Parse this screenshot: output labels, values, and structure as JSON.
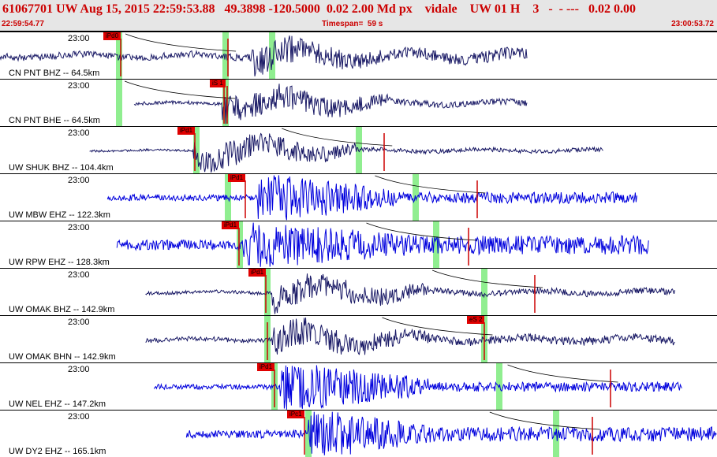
{
  "header": {
    "title": "61067701 UW Aug 15, 2015 22:59:53.88   49.3898 -120.5000  0.02 2.00 Md px    vidale    UW 01 H    3   -  - ---   0.02 0.00",
    "start_time": "22:59:54.77",
    "timespan": "Timespan=  59 s",
    "end_time": "23:00:53.72"
  },
  "colors": {
    "header_bg": "#e6e6e6",
    "header_text": "#cc0000",
    "trace_dark": "#1a1a66",
    "trace_blue": "#0000dd",
    "pick_window": "#90ee90",
    "pick_tag": "#e00000",
    "pick_line": "#cc0000"
  },
  "traces": [
    {
      "time_label": "23:00",
      "station": "CN PNT BHZ -- 64.5km",
      "pick_label": "iPd0",
      "color": "dark",
      "trace_start": 0.0,
      "trace_end": 0.735,
      "envelope": 0.18,
      "event_onset": 0.35,
      "event_peak": 0.55,
      "p_pick": 0.168,
      "s_pick": 0.318,
      "green_windows": [
        0.166,
        0.315,
        0.38
      ]
    },
    {
      "time_label": "23:00",
      "station": "CN PNT BHE -- 64.5km",
      "pick_label": "iS 1",
      "color": "dark",
      "trace_start": 0.187,
      "trace_end": 0.735,
      "envelope": 0.09,
      "event_onset": 0.31,
      "event_peak": 0.55,
      "p_pick": 0.312,
      "s_pick": 0.317,
      "green_windows": [
        0.166,
        0.315
      ]
    },
    {
      "time_label": "23:00",
      "station": "UW SHUK BHZ -- 104.4km",
      "pick_label": "iPd1",
      "color": "dark",
      "trace_start": 0.125,
      "trace_end": 0.842,
      "envelope": 0.06,
      "event_onset": 0.27,
      "event_peak": 0.5,
      "p_pick": 0.272,
      "s_pick": 0.536,
      "green_windows": [
        0.274,
        0.5
      ]
    },
    {
      "time_label": "23:00",
      "station": "UW MBW EHZ -- 122.3km",
      "pick_label": "iPd1",
      "color": "blue",
      "trace_start": 0.15,
      "trace_end": 0.889,
      "envelope": 0.11,
      "event_onset": 0.36,
      "event_peak": 0.55,
      "p_pick": 0.342,
      "s_pick": 0.666,
      "green_windows": [
        0.318,
        0.58
      ]
    },
    {
      "time_label": "23:00",
      "station": "UW RPW EHZ -- 128.3km",
      "pick_label": "iPd1",
      "color": "blue",
      "trace_start": 0.163,
      "trace_end": 0.905,
      "envelope": 0.18,
      "event_onset": 0.34,
      "event_peak": 0.6,
      "p_pick": 0.333,
      "s_pick": 0.654,
      "green_windows": [
        0.334,
        0.608
      ]
    },
    {
      "time_label": "23:00",
      "station": "UW OMAK BHZ -- 142.9km",
      "pick_label": "iPd1",
      "color": "dark",
      "trace_start": 0.203,
      "trace_end": 0.942,
      "envelope": 0.09,
      "event_onset": 0.38,
      "event_peak": 0.6,
      "p_pick": 0.371,
      "s_pick": 0.746,
      "green_windows": [
        0.373,
        0.676
      ]
    },
    {
      "time_label": "23:00",
      "station": "UW OMAK BHN -- 142.9km",
      "pick_label": "eS 2",
      "color": "dark",
      "trace_start": 0.203,
      "trace_end": 0.942,
      "envelope": 0.12,
      "event_onset": 0.38,
      "event_peak": 0.6,
      "p_pick": 0.373,
      "s_pick": 0.676,
      "green_windows": [
        0.373,
        0.676
      ]
    },
    {
      "time_label": "23:00",
      "station": "UW NEL EHZ -- 147.2km",
      "pick_label": "iPd1",
      "color": "blue",
      "trace_start": 0.215,
      "trace_end": 0.952,
      "envelope": 0.09,
      "event_onset": 0.39,
      "event_peak": 0.6,
      "p_pick": 0.383,
      "s_pick": 0.851,
      "green_windows": [
        0.383,
        0.696
      ]
    },
    {
      "time_label": "23:00",
      "station": "UW DY2 EHZ -- 165.1km",
      "pick_label": "iPc1",
      "color": "blue",
      "trace_start": 0.26,
      "trace_end": 1.0,
      "envelope": 0.14,
      "event_onset": 0.43,
      "event_peak": 0.6,
      "p_pick": 0.425,
      "s_pick": 0.826,
      "green_windows": [
        0.43,
        0.776
      ]
    }
  ]
}
